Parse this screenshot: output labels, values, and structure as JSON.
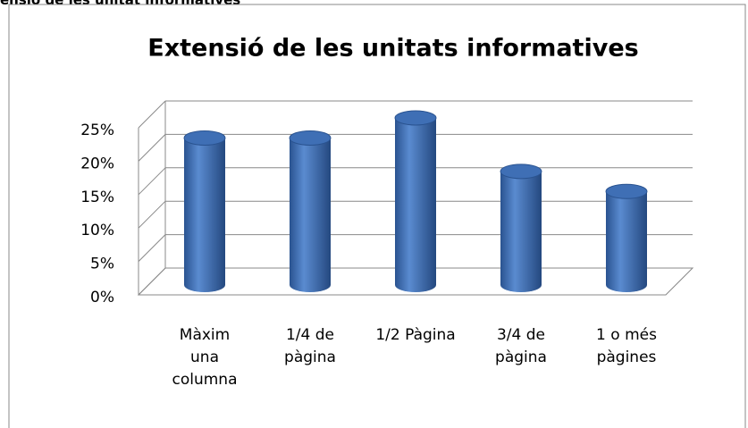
{
  "header": "ensió de les unitat informatives",
  "chart_data": {
    "type": "bar3d",
    "title": "Extensió de les unitats informatives",
    "categories": [
      "Màxim una columna",
      "1/4 de pàgina",
      "1/2 Pàgina",
      "3/4 de pàgina",
      "1 o més pàgines"
    ],
    "values": [
      22,
      22,
      25,
      17,
      14
    ],
    "color": "#3f6fb5",
    "ylim": [
      0,
      25
    ],
    "yticks": [
      {
        "value": 0,
        "label": "0%"
      },
      {
        "value": 5,
        "label": "5%"
      },
      {
        "value": 10,
        "label": "10%"
      },
      {
        "value": 15,
        "label": "15%"
      },
      {
        "value": 20,
        "label": "20%"
      },
      {
        "value": 25,
        "label": "25%"
      }
    ],
    "grid": true
  }
}
